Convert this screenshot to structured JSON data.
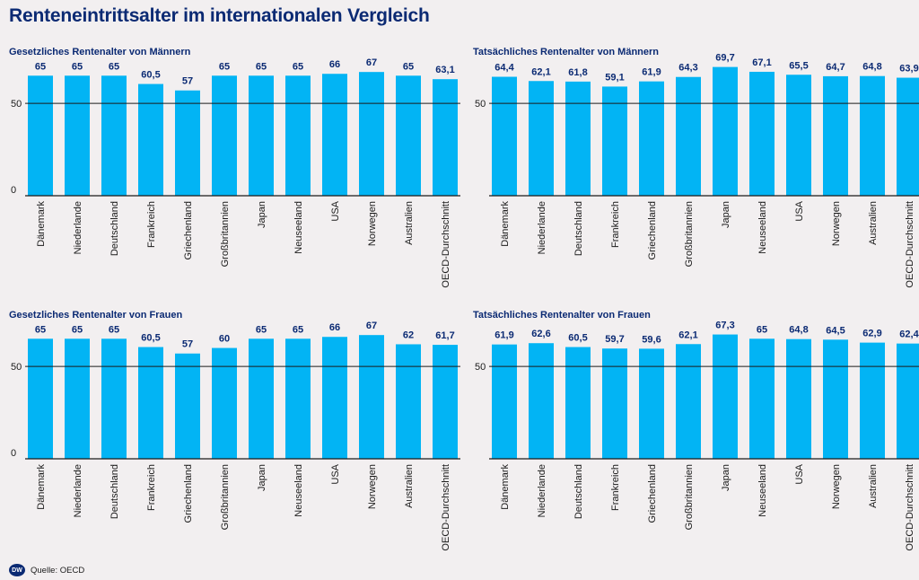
{
  "title": "Renteneintrittsalter im internationalen Vergleich",
  "source": "Quelle: OECD",
  "logo_text": "DW",
  "colors": {
    "bar": "#02b4f4",
    "title": "#0b2a73",
    "background": "#f2eff0"
  },
  "chart_data": [
    {
      "type": "bar",
      "title": "Gesetzliches Rentenalter von Männern",
      "categories": [
        "Dänemark",
        "Niederlande",
        "Deutschland",
        "Frankreich",
        "Griechenland",
        "Großbritannien",
        "Japan",
        "Neuseeland",
        "USA",
        "Norwegen",
        "Australien",
        "OECD-Durchschnitt"
      ],
      "values": [
        65,
        65,
        65,
        60.5,
        57,
        65,
        65,
        65,
        66,
        67,
        65,
        63.1
      ],
      "value_labels": [
        "65",
        "65",
        "65",
        "60,5",
        "57",
        "65",
        "65",
        "65",
        "66",
        "67",
        "65",
        "63,1"
      ],
      "yticks": [
        0,
        50
      ],
      "ylim": [
        0,
        72
      ]
    },
    {
      "type": "bar",
      "title": "Tatsächliches Rentenalter von Männern",
      "categories": [
        "Dänemark",
        "Niederlande",
        "Deutschland",
        "Frankreich",
        "Griechenland",
        "Großbritannien",
        "Japan",
        "Neuseeland",
        "USA",
        "Norwegen",
        "Australien",
        "OECD-Durchschnitt"
      ],
      "values": [
        64.4,
        62.1,
        61.8,
        59.1,
        61.9,
        64.3,
        69.7,
        67.1,
        65.5,
        64.7,
        64.8,
        63.9
      ],
      "value_labels": [
        "64,4",
        "62,1",
        "61,8",
        "59,1",
        "61,9",
        "64,3",
        "69,7",
        "67,1",
        "65,5",
        "64,7",
        "64,8",
        "63,9"
      ],
      "yticks": [
        50
      ],
      "ylim": [
        0,
        72
      ]
    },
    {
      "type": "bar",
      "title": "Gesetzliches Rentenalter von Frauen",
      "categories": [
        "Dänemark",
        "Niederlande",
        "Deutschland",
        "Frankreich",
        "Griechenland",
        "Großbritannien",
        "Japan",
        "Neuseeland",
        "USA",
        "Norwegen",
        "Australien",
        "OECD-Durchschnitt"
      ],
      "values": [
        65,
        65,
        65,
        60.5,
        57,
        60,
        65,
        65,
        66,
        67,
        62,
        61.7
      ],
      "value_labels": [
        "65",
        "65",
        "65",
        "60,5",
        "57",
        "60",
        "65",
        "65",
        "66",
        "67",
        "62",
        "61,7"
      ],
      "yticks": [
        0,
        50
      ],
      "ylim": [
        0,
        72
      ]
    },
    {
      "type": "bar",
      "title": "Tatsächliches Rentenalter von Frauen",
      "categories": [
        "Dänemark",
        "Niederlande",
        "Deutschland",
        "Frankreich",
        "Griechenland",
        "Großbritannien",
        "Japan",
        "Neuseeland",
        "USA",
        "Norwegen",
        "Australien",
        "OECD-Durchschnitt"
      ],
      "values": [
        61.9,
        62.6,
        60.5,
        59.7,
        59.6,
        62.1,
        67.3,
        65,
        64.8,
        64.5,
        62.9,
        62.4
      ],
      "value_labels": [
        "61,9",
        "62,6",
        "60,5",
        "59,7",
        "59,6",
        "62,1",
        "67,3",
        "65",
        "64,8",
        "64,5",
        "62,9",
        "62,4"
      ],
      "yticks": [
        50
      ],
      "ylim": [
        0,
        72
      ]
    }
  ]
}
